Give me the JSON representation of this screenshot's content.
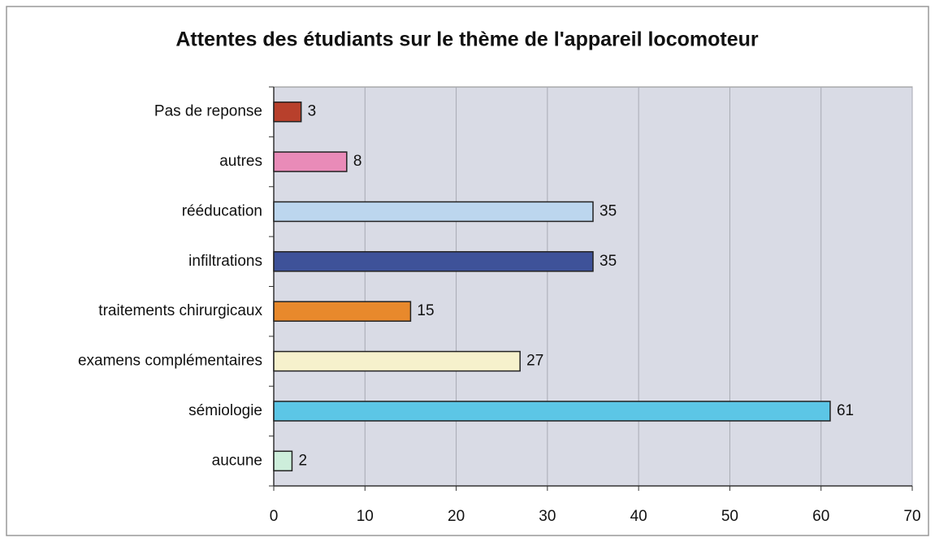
{
  "chart_data": {
    "type": "hbar",
    "title": "Attentes des étudiants sur le thème de l'appareil locomoteur",
    "categories": [
      "Pas de reponse",
      "autres",
      "rééducation",
      "infiltrations",
      "traitements chirurgicaux",
      "examens complémentaires",
      "sémiologie",
      "aucune"
    ],
    "values": [
      3,
      8,
      35,
      35,
      15,
      27,
      61,
      2
    ],
    "colors": [
      "#b8402c",
      "#e98bb8",
      "#bcd6ee",
      "#3e5299",
      "#e8892c",
      "#f6f1cc",
      "#5cc6e6",
      "#cdeedb"
    ],
    "xlim": [
      0,
      70
    ],
    "xticks": [
      0,
      10,
      20,
      30,
      40,
      50,
      60,
      70
    ],
    "grid": true
  }
}
